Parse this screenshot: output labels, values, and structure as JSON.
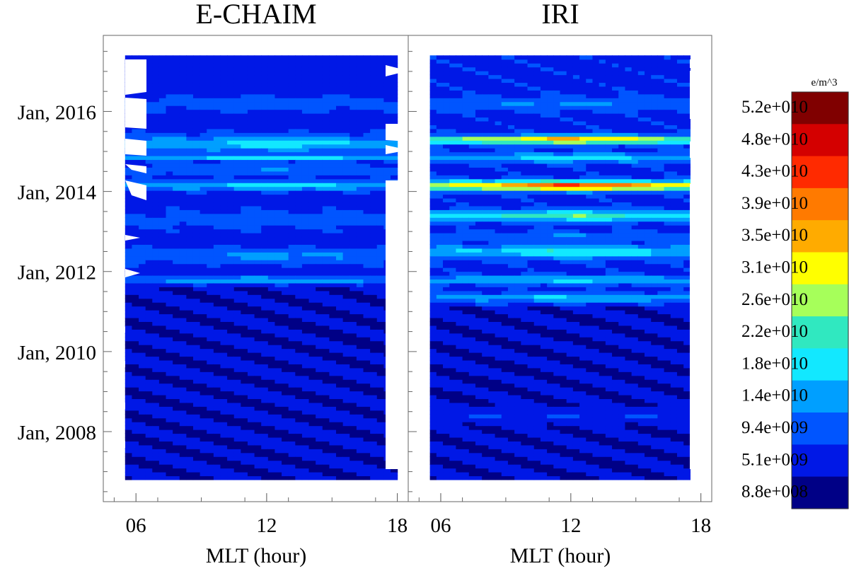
{
  "chart_data": [
    {
      "type": "heatmap",
      "title": "E-CHAIM",
      "xlabel": "MLT (hour)",
      "ylabel": "",
      "x_ticks": [
        "06",
        "12",
        "18"
      ],
      "x_range_hours": [
        4.5,
        18.5
      ],
      "y_ticks": [
        "Jan, 2008",
        "Jan, 2010",
        "Jan, 2012",
        "Jan, 2014",
        "Jan, 2016"
      ],
      "y_range_years": [
        2006.25,
        2017.9
      ],
      "data_extent": {
        "mlt": [
          5.5,
          18.0
        ],
        "years": [
          2006.8,
          2017.4
        ]
      },
      "unit": "e/m^3",
      "dominant_levels": "8.8e+008 to 2.2e+010; peaks near MLT 12 around 2014-2015"
    },
    {
      "type": "heatmap",
      "title": "IRI",
      "xlabel": "MLT (hour)",
      "ylabel": "",
      "x_ticks": [
        "06",
        "12",
        "18"
      ],
      "x_range_hours": [
        4.5,
        18.5
      ],
      "y_ticks": [
        "Jan, 2008",
        "Jan, 2010",
        "Jan, 2012",
        "Jan, 2014",
        "Jan, 2016"
      ],
      "y_range_years": [
        2006.25,
        2017.9
      ],
      "data_extent": {
        "mlt": [
          5.5,
          17.5
        ],
        "years": [
          2006.8,
          2017.4
        ]
      },
      "unit": "e/m^3",
      "dominant_levels": "8.8e+008 to 5.2e+010; strongest bands near MLT 12 at 2014.1 and 2015.3"
    }
  ],
  "colorbar": {
    "unit": "e/m^3",
    "labels": [
      "5.2e+010",
      "4.8e+010",
      "4.3e+010",
      "3.9e+010",
      "3.5e+010",
      "3.1e+010",
      "2.6e+010",
      "2.2e+010",
      "1.8e+010",
      "1.4e+010",
      "9.4e+009",
      "5.1e+009",
      "8.8e+008"
    ],
    "colors": [
      "#800000",
      "#d40000",
      "#ff2a00",
      "#ff7a00",
      "#ffab00",
      "#ffff00",
      "#a6ff5a",
      "#30e8c0",
      "#12e8ff",
      "#009fff",
      "#0055ff",
      "#0018e6",
      "#000086"
    ]
  }
}
